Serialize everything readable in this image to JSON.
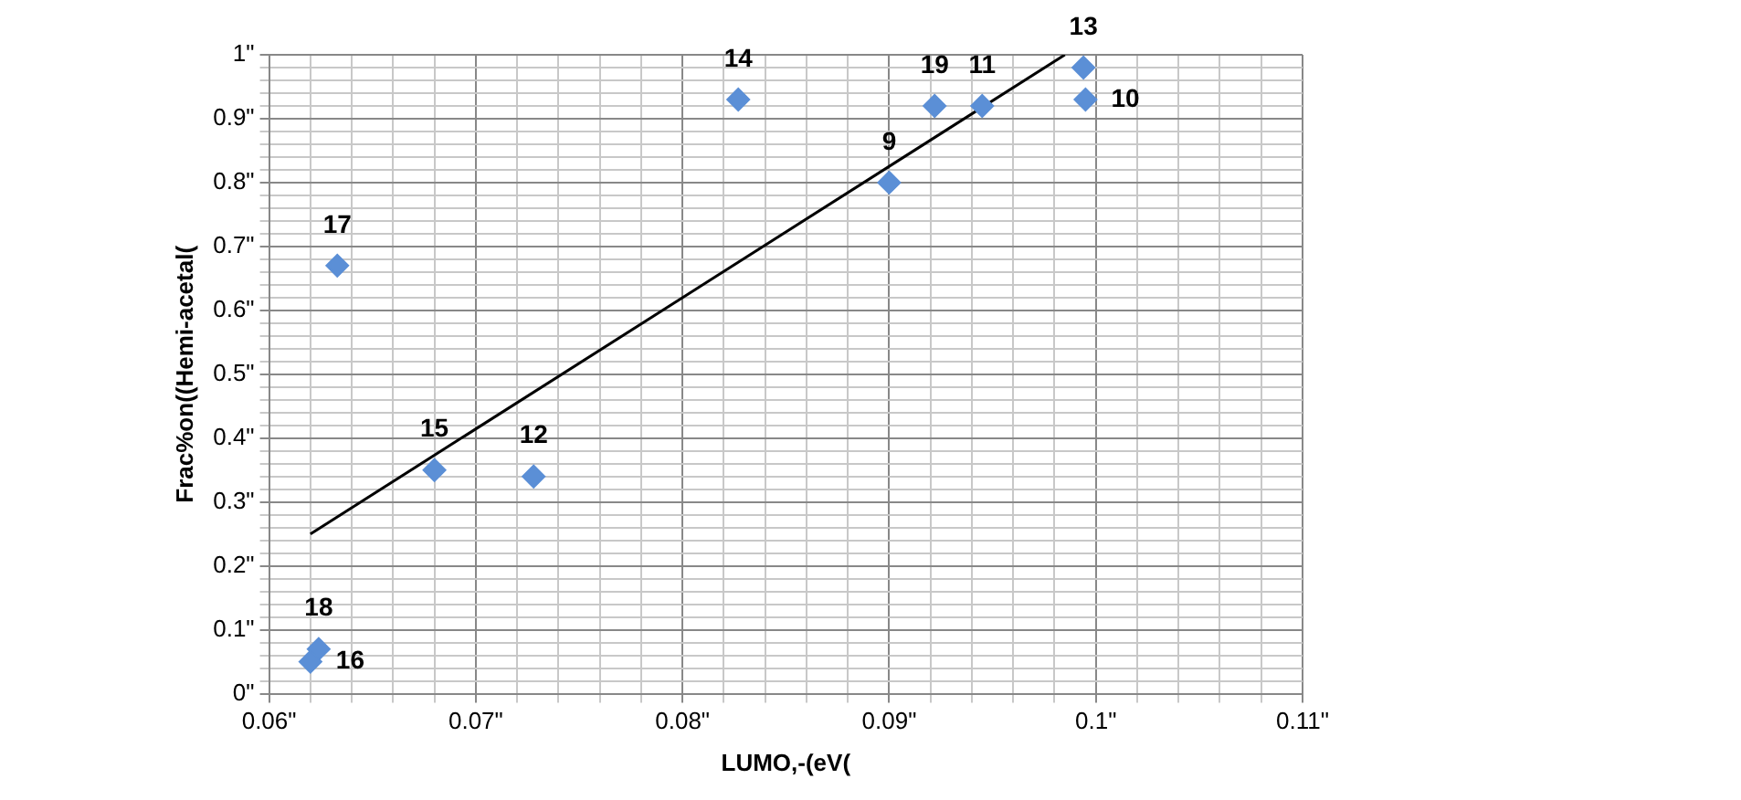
{
  "chart_data": {
    "type": "scatter",
    "xlabel": "LUMO,-(eV(",
    "ylabel": "Frac%on((Hemi-acetal(",
    "xlim": [
      0.06,
      0.11
    ],
    "xticks": [
      {
        "value": 0.06,
        "label": "0.06\""
      },
      {
        "value": 0.062,
        "label": null
      },
      {
        "value": 0.064,
        "label": null
      },
      {
        "value": 0.066,
        "label": null
      },
      {
        "value": 0.068,
        "label": null
      },
      {
        "value": 0.07,
        "label": "0.07\""
      },
      {
        "value": 0.072,
        "label": null
      },
      {
        "value": 0.074,
        "label": null
      },
      {
        "value": 0.076,
        "label": null
      },
      {
        "value": 0.078,
        "label": null
      },
      {
        "value": 0.08,
        "label": "0.08\""
      },
      {
        "value": 0.082,
        "label": null
      },
      {
        "value": 0.084,
        "label": null
      },
      {
        "value": 0.086,
        "label": null
      },
      {
        "value": 0.088,
        "label": null
      },
      {
        "value": 0.09,
        "label": "0.09\""
      },
      {
        "value": 0.092,
        "label": null
      },
      {
        "value": 0.094,
        "label": null
      },
      {
        "value": 0.096,
        "label": null
      },
      {
        "value": 0.098,
        "label": null
      },
      {
        "value": 0.1,
        "label": "0.1\""
      },
      {
        "value": 0.102,
        "label": null
      },
      {
        "value": 0.104,
        "label": null
      },
      {
        "value": 0.106,
        "label": null
      },
      {
        "value": 0.108,
        "label": null
      },
      {
        "value": 0.11,
        "label": "0.11\""
      }
    ],
    "ylim": [
      0,
      1
    ],
    "yticks": [
      {
        "value": 0,
        "label": "0\""
      },
      {
        "value": 0.02,
        "label": null
      },
      {
        "value": 0.04,
        "label": null
      },
      {
        "value": 0.06,
        "label": null
      },
      {
        "value": 0.08,
        "label": null
      },
      {
        "value": 0.1,
        "label": "0.1\""
      },
      {
        "value": 0.12,
        "label": null
      },
      {
        "value": 0.14,
        "label": null
      },
      {
        "value": 0.16,
        "label": null
      },
      {
        "value": 0.18,
        "label": null
      },
      {
        "value": 0.2,
        "label": "0.2\""
      },
      {
        "value": 0.22,
        "label": null
      },
      {
        "value": 0.24,
        "label": null
      },
      {
        "value": 0.26,
        "label": null
      },
      {
        "value": 0.28,
        "label": null
      },
      {
        "value": 0.3,
        "label": "0.3\""
      },
      {
        "value": 0.32,
        "label": null
      },
      {
        "value": 0.34,
        "label": null
      },
      {
        "value": 0.36,
        "label": null
      },
      {
        "value": 0.38,
        "label": null
      },
      {
        "value": 0.4,
        "label": "0.4\""
      },
      {
        "value": 0.42,
        "label": null
      },
      {
        "value": 0.44,
        "label": null
      },
      {
        "value": 0.46,
        "label": null
      },
      {
        "value": 0.48,
        "label": null
      },
      {
        "value": 0.5,
        "label": "0.5\""
      },
      {
        "value": 0.52,
        "label": null
      },
      {
        "value": 0.54,
        "label": null
      },
      {
        "value": 0.56,
        "label": null
      },
      {
        "value": 0.58,
        "label": null
      },
      {
        "value": 0.6,
        "label": "0.6\""
      },
      {
        "value": 0.62,
        "label": null
      },
      {
        "value": 0.64,
        "label": null
      },
      {
        "value": 0.66,
        "label": null
      },
      {
        "value": 0.68,
        "label": null
      },
      {
        "value": 0.7,
        "label": "0.7\""
      },
      {
        "value": 0.72,
        "label": null
      },
      {
        "value": 0.74,
        "label": null
      },
      {
        "value": 0.76,
        "label": null
      },
      {
        "value": 0.78,
        "label": null
      },
      {
        "value": 0.8,
        "label": "0.8\""
      },
      {
        "value": 0.82,
        "label": null
      },
      {
        "value": 0.84,
        "label": null
      },
      {
        "value": 0.86,
        "label": null
      },
      {
        "value": 0.88,
        "label": null
      },
      {
        "value": 0.9,
        "label": "0.9\""
      },
      {
        "value": 0.92,
        "label": null
      },
      {
        "value": 0.94,
        "label": null
      },
      {
        "value": 0.96,
        "label": null
      },
      {
        "value": 0.98,
        "label": null
      },
      {
        "value": 1,
        "label": "1\""
      }
    ],
    "grid": true,
    "marker": "diamond",
    "series": [
      {
        "color": "#5b8fd6",
        "x": [
          0.0633,
          0.068,
          0.0728,
          0.0827,
          0.09,
          0.0922,
          0.0945,
          0.0994,
          0.0995,
          0.0624,
          0.062
        ],
        "values": [
          0.67,
          0.35,
          0.34,
          0.93,
          0.8,
          0.92,
          0.92,
          0.98,
          0.93,
          0.07,
          0.05
        ]
      },
      {
        "type": "line",
        "color": "#000000",
        "marker": "none",
        "x": [
          0.062,
          0.0985
        ],
        "values": [
          0.25,
          1.0
        ]
      }
    ],
    "annotations": [
      {
        "text": "17",
        "x": 0.0633,
        "y": 0.67
      },
      {
        "text": "15",
        "x": 0.068,
        "y": 0.35
      },
      {
        "text": "12",
        "x": 0.0728,
        "y": 0.34
      },
      {
        "text": "14",
        "x": 0.0827,
        "y": 0.93
      },
      {
        "text": "9",
        "x": 0.09,
        "y": 0.8
      },
      {
        "text": "19",
        "x": 0.0922,
        "y": 0.92
      },
      {
        "text": "11",
        "x": 0.0945,
        "y": 0.92
      },
      {
        "text": "13",
        "x": 0.0994,
        "y": 0.98
      },
      {
        "text": "10",
        "x": 0.0995,
        "y": 0.93
      },
      {
        "text": "18",
        "x": 0.0624,
        "y": 0.07
      },
      {
        "text": "16",
        "x": 0.062,
        "y": 0.05
      }
    ]
  }
}
